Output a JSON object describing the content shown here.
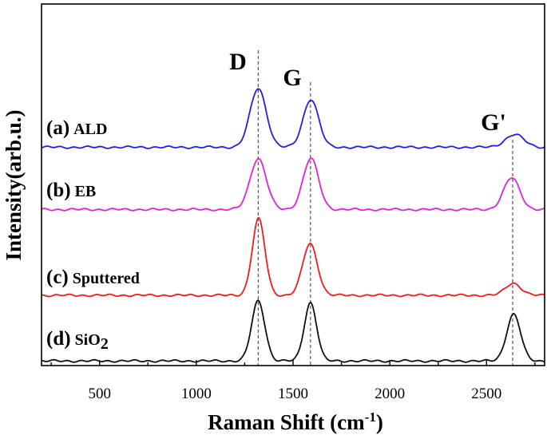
{
  "chart_data": {
    "type": "line",
    "xlabel": "Raman Shift (cm",
    "xlabel_sup": "-1",
    "xlabel_end": ")",
    "ylabel": "Intensity(arb.u.)",
    "xlim": [
      200,
      2800
    ],
    "x_ticks": [
      500,
      1000,
      1500,
      2000,
      2500
    ],
    "x_tick_labels": [
      "500",
      "1000",
      "1500",
      "2000",
      "2500"
    ],
    "y_ticks_shown": false,
    "grid": false,
    "reference_lines": [
      {
        "label": "D",
        "x": 1320
      },
      {
        "label": "G",
        "x": 1590
      },
      {
        "label": "G'",
        "x": 2635
      }
    ],
    "series": [
      {
        "letter": "(a)",
        "name": "ALD",
        "sub": "",
        "color": "#1f1fe6",
        "baseline": 0.02,
        "peaks": [
          {
            "band": "D",
            "x": 1320,
            "height": 0.97,
            "width": 42
          },
          {
            "band": "G",
            "x": 1592,
            "height": 0.79,
            "width": 40
          },
          {
            "band": "G'",
            "x": 2645,
            "height": 0.21,
            "width": 48
          }
        ]
      },
      {
        "letter": "(b)",
        "name": "EB",
        "sub": "",
        "color": "#e020e0",
        "baseline": 0.02,
        "peaks": [
          {
            "band": "D",
            "x": 1320,
            "height": 0.84,
            "width": 42
          },
          {
            "band": "G",
            "x": 1592,
            "height": 0.84,
            "width": 40
          },
          {
            "band": "G'",
            "x": 2630,
            "height": 0.52,
            "width": 42
          }
        ]
      },
      {
        "letter": "(c)",
        "name": "Sputtered",
        "sub": "",
        "color": "#ee1c1c",
        "baseline": 0.0,
        "peaks": [
          {
            "band": "D",
            "x": 1322,
            "height": 1.26,
            "width": 33
          },
          {
            "band": "G",
            "x": 1588,
            "height": 0.85,
            "width": 38
          },
          {
            "band": "G'",
            "x": 2638,
            "height": 0.2,
            "width": 40
          }
        ]
      },
      {
        "letter": "(d)",
        "name": "SiO",
        "sub": "2",
        "color": "#111111",
        "baseline": 0.01,
        "peaks": [
          {
            "band": "D",
            "x": 1320,
            "height": 0.99,
            "width": 34
          },
          {
            "band": "G",
            "x": 1590,
            "height": 0.96,
            "width": 32
          },
          {
            "band": "G'",
            "x": 2640,
            "height": 0.77,
            "width": 36
          }
        ]
      }
    ]
  }
}
